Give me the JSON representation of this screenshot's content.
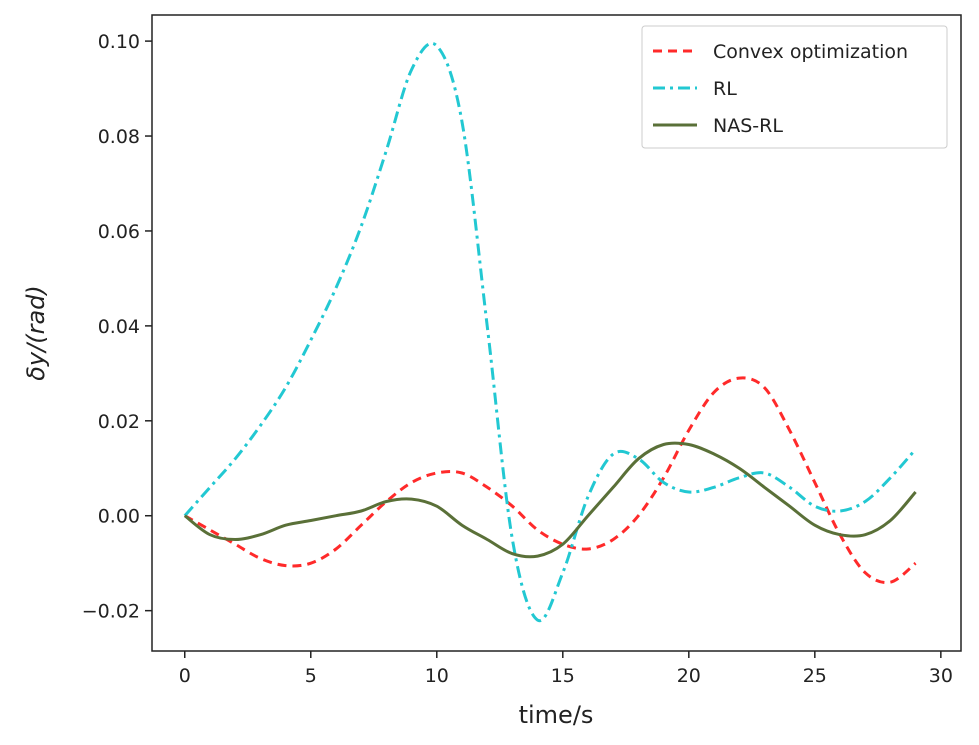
{
  "chart_data": {
    "type": "line",
    "title": "",
    "xlabel": "time/s",
    "ylabel": "δy/(rad)",
    "xlim": [
      -1.3,
      30.8
    ],
    "ylim": [
      -0.0285,
      0.1055
    ],
    "xticks": [
      "0",
      "5",
      "10",
      "15",
      "20",
      "25",
      "30"
    ],
    "yticks": [
      "−0.02",
      "0.00",
      "0.02",
      "0.04",
      "0.06",
      "0.08",
      "0.10"
    ],
    "grid": false,
    "legend_position": "top-right",
    "series": [
      {
        "name": "Convex optimization",
        "color": "#ff2a2a",
        "dash": "dashed",
        "x": [
          0,
          1,
          2,
          3,
          4,
          5,
          6,
          7,
          8,
          9,
          10,
          11,
          12,
          13,
          14,
          15,
          16,
          17,
          18,
          19,
          20,
          21,
          22,
          23,
          24,
          25,
          26,
          27,
          28,
          29
        ],
        "y": [
          0.0,
          -0.003,
          -0.006,
          -0.009,
          -0.0105,
          -0.01,
          -0.007,
          -0.002,
          0.003,
          0.007,
          0.009,
          0.009,
          0.006,
          0.002,
          -0.003,
          -0.006,
          -0.007,
          -0.005,
          0.0,
          0.008,
          0.018,
          0.026,
          0.029,
          0.027,
          0.018,
          0.007,
          -0.004,
          -0.012,
          -0.014,
          -0.01
        ]
      },
      {
        "name": "RL",
        "color": "#22c8d2",
        "dash": "dashdot",
        "x": [
          0,
          1,
          2,
          3,
          4,
          5,
          6,
          7,
          8,
          9,
          10,
          11,
          12,
          13,
          14,
          15,
          16,
          17,
          18,
          19,
          20,
          21,
          22,
          23,
          24,
          25,
          26,
          27,
          28,
          29
        ],
        "y": [
          0.0,
          0.006,
          0.012,
          0.019,
          0.027,
          0.037,
          0.048,
          0.061,
          0.077,
          0.094,
          0.099,
          0.083,
          0.04,
          -0.005,
          -0.022,
          -0.012,
          0.004,
          0.013,
          0.012,
          0.007,
          0.005,
          0.006,
          0.008,
          0.009,
          0.006,
          0.002,
          0.001,
          0.003,
          0.008,
          0.014
        ]
      },
      {
        "name": "NAS-RL",
        "color": "#5a7038",
        "dash": "solid",
        "x": [
          0,
          1,
          2,
          3,
          4,
          5,
          6,
          7,
          8,
          9,
          10,
          11,
          12,
          13,
          14,
          15,
          16,
          17,
          18,
          19,
          20,
          21,
          22,
          23,
          24,
          25,
          26,
          27,
          28,
          29
        ],
        "y": [
          0.0,
          -0.004,
          -0.005,
          -0.004,
          -0.002,
          -0.001,
          0.0,
          0.001,
          0.003,
          0.0035,
          0.002,
          -0.002,
          -0.005,
          -0.008,
          -0.0085,
          -0.006,
          0.0,
          0.006,
          0.012,
          0.015,
          0.015,
          0.013,
          0.01,
          0.006,
          0.002,
          -0.002,
          -0.004,
          -0.004,
          -0.001,
          0.005
        ]
      }
    ]
  }
}
